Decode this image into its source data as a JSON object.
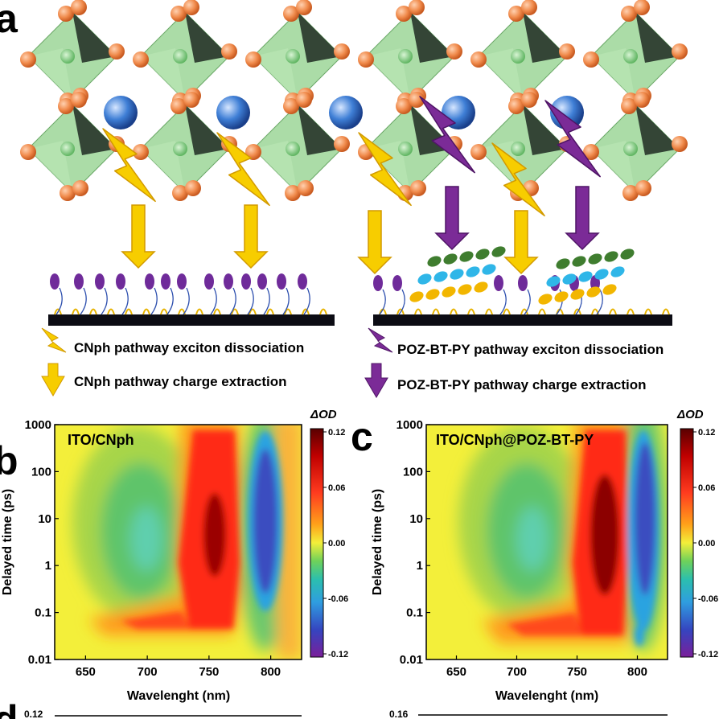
{
  "panels": {
    "a": "a",
    "b": "b",
    "c": "c",
    "d": "d"
  },
  "legend": {
    "cnph_dissociation": "CNph pathway exciton dissociation",
    "cnph_extraction": "CNph pathway charge extraction",
    "poz_dissociation": "POZ-BT-PY pathway exciton dissociation",
    "poz_extraction": "POZ-BT-PY pathway charge extraction"
  },
  "colors": {
    "cnph_arrow": "#f7cd00",
    "poz_arrow": "#7b2b97",
    "octahedron": "#8fd08a",
    "cation": "#3f7fd6",
    "halide": "#f08a4b"
  },
  "chart_data": [
    {
      "type": "heatmap",
      "panel_label": "ITO/CNph",
      "xlabel": "Wavelenght (nm)",
      "ylabel": "Delayed time (ps)",
      "xlim": [
        625,
        825
      ],
      "ylim": [
        0.01,
        1000
      ],
      "yscale": "log",
      "x_ticks": [
        "650",
        "700",
        "750",
        "800"
      ],
      "y_ticks": [
        "1000",
        "100",
        "10",
        "1",
        "0.1",
        "0.01"
      ],
      "colorbar_title": "ΔOD",
      "colorbar_ticks": [
        "0.12",
        "0.06",
        "0.00",
        "-0.06",
        "-0.12"
      ],
      "colorbar_range": [
        -0.12,
        0.12
      ]
    },
    {
      "type": "heatmap",
      "panel_label": "ITO/CNph@POZ-BT-PY",
      "xlabel": "Wavelenght (nm)",
      "ylabel": "Delayed time (ps)",
      "xlim": [
        625,
        825
      ],
      "ylim": [
        0.01,
        1000
      ],
      "yscale": "log",
      "x_ticks": [
        "650",
        "700",
        "750",
        "800"
      ],
      "y_ticks": [
        "1000",
        "100",
        "10",
        "1",
        "0.1",
        "0.01"
      ],
      "colorbar_title": "ΔOD",
      "colorbar_ticks": [
        "0.12",
        "0.06",
        "0.00",
        "-0.06",
        "-0.12"
      ],
      "colorbar_range": [
        -0.12,
        0.12
      ]
    }
  ],
  "panel_d": {
    "y_tick_left": "0.12",
    "y_tick_right": "0.16"
  }
}
